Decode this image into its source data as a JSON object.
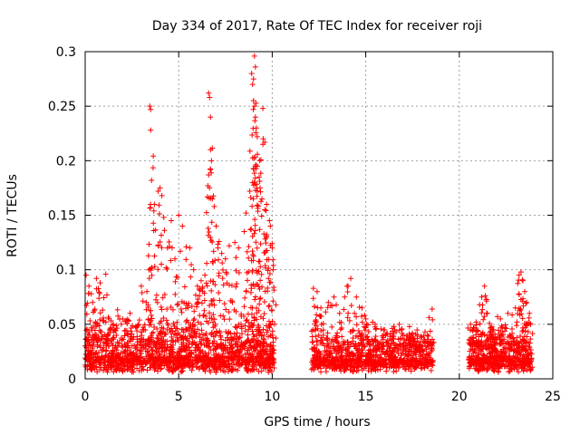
{
  "chart_data": {
    "type": "scatter",
    "title": "Day 334 of 2017, Rate Of TEC Index for receiver roji",
    "xlabel": "GPS time / hours",
    "ylabel": "ROTI / TECUs",
    "xlim": [
      0,
      25
    ],
    "ylim": [
      0,
      0.3
    ],
    "xticks": [
      0,
      5,
      10,
      15,
      20,
      25
    ],
    "xtick_labels": [
      "0",
      "5",
      "10",
      "15",
      "20",
      "25"
    ],
    "yticks": [
      0,
      0.05,
      0.1,
      0.15,
      0.2,
      0.25,
      0.3
    ],
    "ytick_labels": [
      "0",
      "0.05",
      "0.1",
      "0.15",
      "0.2",
      "0.25",
      "0.3"
    ],
    "grid": true,
    "marker": "+",
    "color": "#ff0000",
    "series": [
      {
        "name": "ROTI",
        "points": [
          [
            0.05,
            0.095
          ],
          [
            0.2,
            0.085
          ],
          [
            0.4,
            0.07
          ],
          [
            0.6,
            0.092
          ],
          [
            0.8,
            0.088
          ],
          [
            1.1,
            0.096
          ],
          [
            1.5,
            0.05
          ],
          [
            2.0,
            0.055
          ],
          [
            2.4,
            0.06
          ],
          [
            3.0,
            0.085
          ],
          [
            3.3,
            0.08
          ],
          [
            3.45,
            0.25
          ],
          [
            3.5,
            0.247
          ],
          [
            3.5,
            0.228
          ],
          [
            3.55,
            0.182
          ],
          [
            3.7,
            0.16
          ],
          [
            3.9,
            0.172
          ],
          [
            4.0,
            0.175
          ],
          [
            4.1,
            0.168
          ],
          [
            4.2,
            0.148
          ],
          [
            4.4,
            0.12
          ],
          [
            4.6,
            0.145
          ],
          [
            4.8,
            0.11
          ],
          [
            5.0,
            0.15
          ],
          [
            5.2,
            0.14
          ],
          [
            5.4,
            0.121
          ],
          [
            5.6,
            0.12
          ],
          [
            5.8,
            0.1
          ],
          [
            6.0,
            0.085
          ],
          [
            6.2,
            0.09
          ],
          [
            6.4,
            0.095
          ],
          [
            6.6,
            0.262
          ],
          [
            6.65,
            0.258
          ],
          [
            6.7,
            0.24
          ],
          [
            6.7,
            0.21
          ],
          [
            6.6,
            0.187
          ],
          [
            6.75,
            0.2
          ],
          [
            6.8,
            0.165
          ],
          [
            6.9,
            0.158
          ],
          [
            7.0,
            0.14
          ],
          [
            7.1,
            0.12
          ],
          [
            7.3,
            0.115
          ],
          [
            7.5,
            0.11
          ],
          [
            7.7,
            0.122
          ],
          [
            8.0,
            0.125
          ],
          [
            8.2,
            0.12
          ],
          [
            8.5,
            0.135
          ],
          [
            8.6,
            0.152
          ],
          [
            8.8,
            0.172
          ],
          [
            8.9,
            0.28
          ],
          [
            8.95,
            0.27
          ],
          [
            9.0,
            0.275
          ],
          [
            9.05,
            0.296
          ],
          [
            9.1,
            0.286
          ],
          [
            9.0,
            0.255
          ],
          [
            9.05,
            0.25
          ],
          [
            9.1,
            0.24
          ],
          [
            9.15,
            0.23
          ],
          [
            9.2,
            0.222
          ],
          [
            9.1,
            0.203
          ],
          [
            9.2,
            0.195
          ],
          [
            9.3,
            0.185
          ],
          [
            9.35,
            0.175
          ],
          [
            9.45,
            0.165
          ],
          [
            9.5,
            0.248
          ],
          [
            9.5,
            0.215
          ],
          [
            9.6,
            0.155
          ],
          [
            9.7,
            0.16
          ],
          [
            9.85,
            0.145
          ],
          [
            9.9,
            0.14
          ],
          [
            10.0,
            0.12
          ],
          [
            10.05,
            0.1
          ],
          [
            12.2,
            0.083
          ],
          [
            12.4,
            0.08
          ],
          [
            12.6,
            0.065
          ],
          [
            13.0,
            0.07
          ],
          [
            13.3,
            0.075
          ],
          [
            13.6,
            0.06
          ],
          [
            14.0,
            0.085
          ],
          [
            14.2,
            0.092
          ],
          [
            14.5,
            0.075
          ],
          [
            14.8,
            0.065
          ],
          [
            15.0,
            0.055
          ],
          [
            15.5,
            0.05
          ],
          [
            16.0,
            0.045
          ],
          [
            16.5,
            0.048
          ],
          [
            17.0,
            0.04
          ],
          [
            17.5,
            0.042
          ],
          [
            18.0,
            0.038
          ],
          [
            18.3,
            0.04
          ],
          [
            18.55,
            0.064
          ],
          [
            20.6,
            0.05
          ],
          [
            20.9,
            0.052
          ],
          [
            21.2,
            0.075
          ],
          [
            21.35,
            0.085
          ],
          [
            21.5,
            0.06
          ],
          [
            21.8,
            0.045
          ],
          [
            22.2,
            0.055
          ],
          [
            22.6,
            0.06
          ],
          [
            23.0,
            0.065
          ],
          [
            23.2,
            0.095
          ],
          [
            23.3,
            0.098
          ],
          [
            23.4,
            0.09
          ],
          [
            23.5,
            0.08
          ],
          [
            23.6,
            0.07
          ],
          [
            23.75,
            0.06
          ]
        ],
        "dense_bands": [
          {
            "x": [
              0.0,
              10.1
            ],
            "y_median": 0.02,
            "y_spread": 0.012,
            "count": 1500
          },
          {
            "x": [
              12.1,
              18.6
            ],
            "y_median": 0.018,
            "y_spread": 0.009,
            "count": 900
          },
          {
            "x": [
              20.5,
              23.9
            ],
            "y_median": 0.019,
            "y_spread": 0.01,
            "count": 550
          }
        ]
      }
    ]
  }
}
